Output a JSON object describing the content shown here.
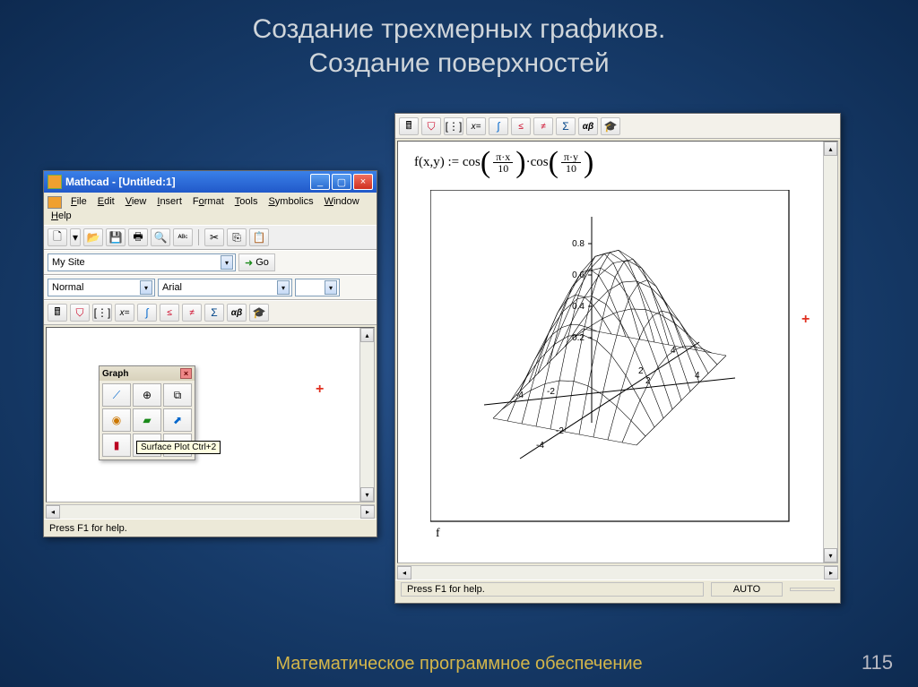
{
  "slide": {
    "title_l1": "Создание трехмерных графиков.",
    "title_l2": "Создание поверхностей",
    "footer": "Математическое программное обеспечение",
    "page": "115"
  },
  "left_window": {
    "title": "Mathcad - [Untitled:1]",
    "menus": [
      "File",
      "Edit",
      "View",
      "Insert",
      "Format",
      "Tools",
      "Symbolics",
      "Window",
      "Help"
    ],
    "toolbar1_icons": [
      "new-file",
      "▾",
      "open",
      "save",
      "print",
      "preview",
      "spell",
      "|",
      "cut",
      "copy",
      "paste"
    ],
    "address": "My Site",
    "go_label": "Go",
    "style_combo": "Normal",
    "font_combo": "Arial",
    "math_icons": [
      "calc",
      "graph",
      "matrix",
      "x=",
      "integral",
      "lteq",
      "neq",
      "sum",
      "alpha-beta",
      "hat"
    ],
    "palette_title": "Graph",
    "palette_buttons": [
      "xy-plot",
      "polar",
      "bar3d",
      "contour",
      "surface",
      "vector",
      "bar",
      "scatter3d",
      "pie"
    ],
    "tooltip": "Surface Plot Ctrl+2",
    "status": "Press F1 for help."
  },
  "right_window": {
    "math_icons": [
      "calc",
      "graph",
      "matrix",
      "x=",
      "integral",
      "lteq",
      "neq",
      "sum",
      "alpha-beta",
      "hat"
    ],
    "formula_lhs": "f(x,y) :=",
    "formula_fn": "cos",
    "formula_num1": "π·x",
    "formula_num2": "π·y",
    "formula_den": "10",
    "f_label": "f",
    "status": "Press F1 for help.",
    "status_right": "AUTO",
    "z_ticks": [
      "0.8",
      "0.6",
      "0.4",
      "0.2"
    ],
    "x_ticks": [
      "-4",
      "-2",
      "2",
      "4"
    ],
    "y_ticks": [
      "-4",
      "-2",
      "2",
      "4"
    ],
    "chart": {
      "type": "surface-wireframe",
      "function": "cos(pi*x/10)*cos(pi*y/10)",
      "x_range": [
        -5,
        5
      ],
      "y_range": [
        -5,
        5
      ],
      "z_range": [
        -0.2,
        1.0
      ],
      "grid_lines": 11,
      "line_color": "#000000",
      "background": "#ffffff",
      "axis_color": "#000000",
      "tick_fontsize": 9
    }
  }
}
